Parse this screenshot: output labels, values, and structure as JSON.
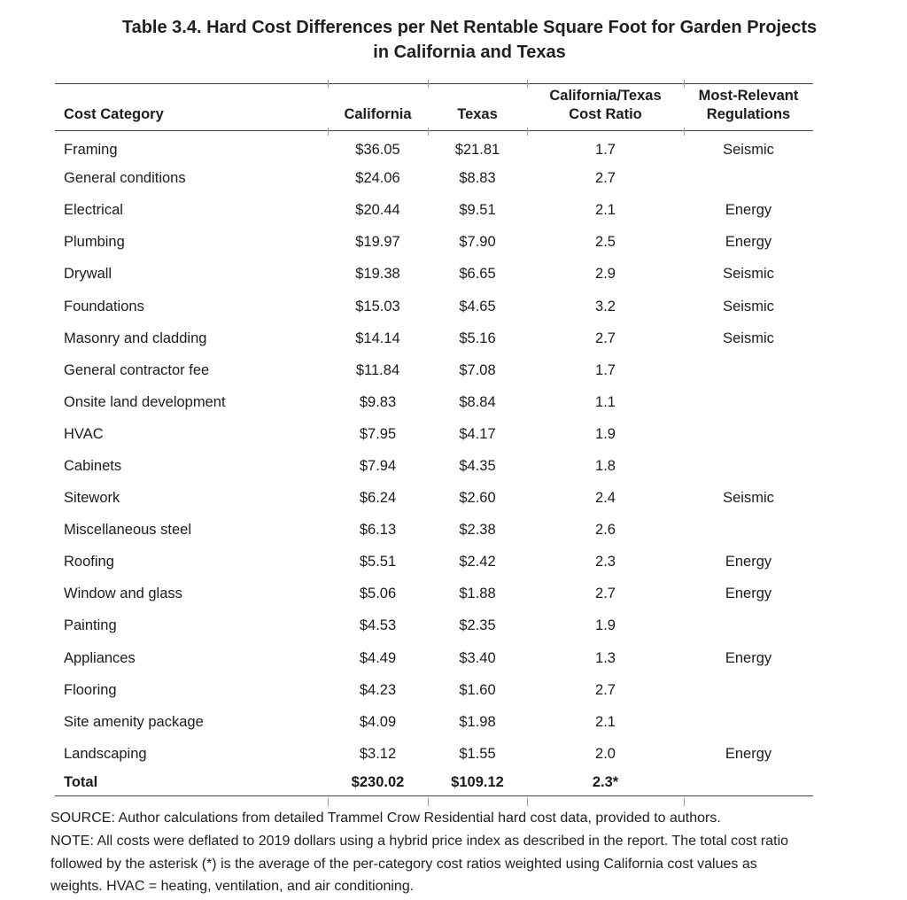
{
  "title": {
    "line1": "Table 3.4. Hard Cost Differences per Net Rentable Square Foot for Garden Projects",
    "line2": "in California and Texas"
  },
  "table": {
    "columns": [
      {
        "id": "category",
        "label": "Cost Category"
      },
      {
        "id": "california",
        "label": "California"
      },
      {
        "id": "texas",
        "label": "Texas"
      },
      {
        "id": "ratio",
        "label_line1": "California/Texas",
        "label_line2": "Cost Ratio"
      },
      {
        "id": "regulations",
        "label_line1": "Most-Relevant",
        "label_line2": "Regulations"
      }
    ],
    "rows": [
      {
        "category": "Framing",
        "california": "$36.05",
        "texas": "$21.81",
        "ratio": "1.7",
        "regulations": "Seismic"
      },
      {
        "category": "General conditions",
        "california": "$24.06",
        "texas": "$8.83",
        "ratio": "2.7",
        "regulations": ""
      },
      {
        "category": "Electrical",
        "california": "$20.44",
        "texas": "$9.51",
        "ratio": "2.1",
        "regulations": "Energy"
      },
      {
        "category": "Plumbing",
        "california": "$19.97",
        "texas": "$7.90",
        "ratio": "2.5",
        "regulations": "Energy"
      },
      {
        "category": "Drywall",
        "california": "$19.38",
        "texas": "$6.65",
        "ratio": "2.9",
        "regulations": "Seismic"
      },
      {
        "category": "Foundations",
        "california": "$15.03",
        "texas": "$4.65",
        "ratio": "3.2",
        "regulations": "Seismic"
      },
      {
        "category": "Masonry and cladding",
        "california": "$14.14",
        "texas": "$5.16",
        "ratio": "2.7",
        "regulations": "Seismic"
      },
      {
        "category": "General contractor fee",
        "california": "$11.84",
        "texas": "$7.08",
        "ratio": "1.7",
        "regulations": ""
      },
      {
        "category": "Onsite land development",
        "california": "$9.83",
        "texas": "$8.84",
        "ratio": "1.1",
        "regulations": ""
      },
      {
        "category": "HVAC",
        "california": "$7.95",
        "texas": "$4.17",
        "ratio": "1.9",
        "regulations": ""
      },
      {
        "category": "Cabinets",
        "california": "$7.94",
        "texas": "$4.35",
        "ratio": "1.8",
        "regulations": ""
      },
      {
        "category": "Sitework",
        "california": "$6.24",
        "texas": "$2.60",
        "ratio": "2.4",
        "regulations": "Seismic"
      },
      {
        "category": "Miscellaneous steel",
        "california": "$6.13",
        "texas": "$2.38",
        "ratio": "2.6",
        "regulations": ""
      },
      {
        "category": "Roofing",
        "california": "$5.51",
        "texas": "$2.42",
        "ratio": "2.3",
        "regulations": "Energy"
      },
      {
        "category": "Window and glass",
        "california": "$5.06",
        "texas": "$1.88",
        "ratio": "2.7",
        "regulations": "Energy"
      },
      {
        "category": "Painting",
        "california": "$4.53",
        "texas": "$2.35",
        "ratio": "1.9",
        "regulations": ""
      },
      {
        "category": "Appliances",
        "california": "$4.49",
        "texas": "$3.40",
        "ratio": "1.3",
        "regulations": "Energy"
      },
      {
        "category": "Flooring",
        "california": "$4.23",
        "texas": "$1.60",
        "ratio": "2.7",
        "regulations": ""
      },
      {
        "category": "Site amenity package",
        "california": "$4.09",
        "texas": "$1.98",
        "ratio": "2.1",
        "regulations": ""
      },
      {
        "category": "Landscaping",
        "california": "$3.12",
        "texas": "$1.55",
        "ratio": "2.0",
        "regulations": "Energy"
      }
    ],
    "total": {
      "category": "Total",
      "california": "$230.02",
      "texas": "$109.12",
      "ratio": "2.3*",
      "regulations": ""
    }
  },
  "footnotes": {
    "lines": [
      "SOURCE: Author calculations from detailed Trammel Crow Residential hard cost data, provided to authors.",
      "NOTE: All costs were deflated to 2019 dollars using a hybrid price index as described in the report. The total cost ratio",
      "followed by the asterisk (*) is the average of the per-category cost ratios weighted using California cost values as",
      "weights. HVAC = heating, ventilation, and air conditioning."
    ]
  },
  "colors": {
    "text": "#1c1c1c",
    "rule": "#454545",
    "tick": "#9b9b9b",
    "background": "#ffffff"
  }
}
